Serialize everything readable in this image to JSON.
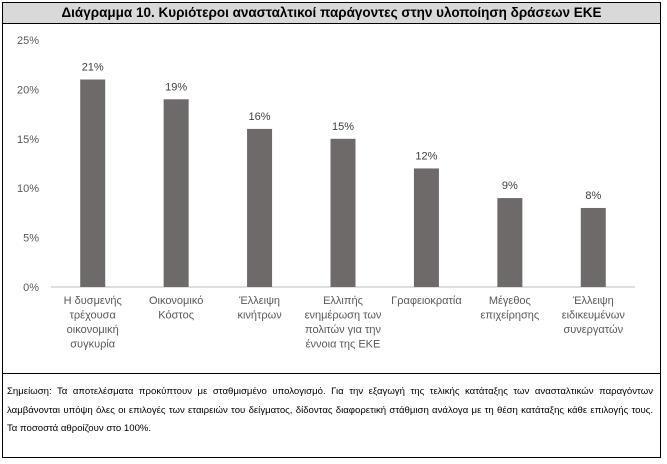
{
  "title": "Διάγραμμα  10. Κυριότεροι  ανασταλτικοί  παράγοντες  στην υλοποίηση  δράσεων  ΕΚΕ",
  "note": "Σημείωση: Τα αποτελέσματα προκύπτουν με σταθμισμένο υπολογισμό. Για την εξαγωγή της τελικής κατάταξης των ανασταλτικών παραγόντων λαμβάνονται υπόψη όλες οι επιλογές των εταιρειών του δείγματος, δίδοντας διαφορετική στάθμιση ανάλογα με τη θέση κατάταξης κάθε επιλογής τους. Τα ποσοστά αθροίζουν στο 100%.",
  "colors": {
    "bar": "#6e6a6a",
    "axis": "#bfbfbf",
    "text": "#595959"
  },
  "chart_data": {
    "type": "bar",
    "title": "Διάγραμμα  10. Κυριότεροι  ανασταλτικοί  παράγοντες  στην υλοποίηση  δράσεων  ΕΚΕ",
    "categories": [
      "Η δυσμενής τρέχουσα οικονομική συγκυρία",
      "Οικονομικό Κόστος",
      "Έλλειψη κινήτρων",
      "Ελλιπής ενημέρωση των πολιτών για την έννοια της ΕΚΕ",
      "Γραφειοκρατία",
      "Μέγεθος επιχείρησης",
      "Έλλειψη ειδικευμένων συνεργατών"
    ],
    "category_lines": [
      [
        "Η δυσμενής",
        "τρέχουσα",
        "οικονομική",
        "συγκυρία"
      ],
      [
        "Οικονομικό",
        "Κόστος"
      ],
      [
        "Έλλειψη",
        "κινήτρων"
      ],
      [
        "Ελλιπής",
        "ενημέρωση των",
        "πολιτών για την",
        "έννοια της ΕΚΕ"
      ],
      [
        "Γραφειοκρατία"
      ],
      [
        "Μέγεθος",
        "επιχείρησης"
      ],
      [
        "Έλλειψη",
        "ειδικευμένων",
        "συνεργατών"
      ]
    ],
    "values": [
      21,
      19,
      16,
      15,
      12,
      9,
      8
    ],
    "data_labels": [
      "21%",
      "19%",
      "16%",
      "15%",
      "12%",
      "9%",
      "8%"
    ],
    "yticks": [
      0,
      5,
      10,
      15,
      20,
      25
    ],
    "ytick_labels": [
      "0%",
      "5%",
      "10%",
      "15%",
      "20%",
      "25%"
    ],
    "ylim": [
      0,
      25
    ],
    "grid": false,
    "legend": "none"
  }
}
